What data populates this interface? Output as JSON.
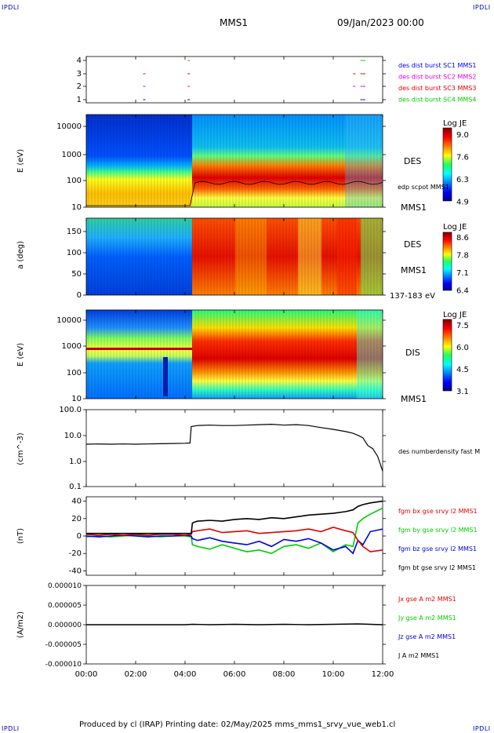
{
  "corner_labels": [
    "IPDLI",
    "IPDLI",
    "IPDLI",
    "IPDLI"
  ],
  "header": {
    "spacecraft": "MMS1",
    "datetime": "09/Jan/2023 00:00"
  },
  "footer": {
    "text": "Produced by cl (IRAP)   Printing date: 02/May/2025   mms_mms1_srvy_vue_web1.cl"
  },
  "colors": {
    "red": "#e00000",
    "green": "#00cc00",
    "blue": "#0000e0",
    "magenta": "#e000e0",
    "black": "#000000"
  },
  "chart_data": [
    {
      "type": "scatter",
      "panel": "burst-availability",
      "yticks": [
        "4",
        "3",
        "2",
        "1"
      ],
      "legend": [
        {
          "text": "des dist burst SC1 MMS1",
          "color": "#0000e0"
        },
        {
          "text": "des dist burst SC2 MMS2",
          "color": "#e000e0"
        },
        {
          "text": "des dist burst SC3 MMS3",
          "color": "#e00000"
        },
        {
          "text": "des dist burst SC4 MMS4",
          "color": "#00cc00"
        }
      ],
      "series": [
        {
          "y": 4,
          "color": "#00cc00",
          "x": [
            4.1,
            11.1,
            11.2
          ]
        },
        {
          "y": 3,
          "color": "#e00000",
          "x": [
            2.3,
            4.1,
            10.8,
            11.1,
            11.2
          ]
        },
        {
          "y": 2,
          "color": "#e000e0",
          "x": [
            2.3,
            4.1,
            10.8,
            11.1,
            11.2
          ]
        },
        {
          "y": 1,
          "color": "#0000e0",
          "x": [
            2.3,
            4.1,
            11.1,
            11.2
          ]
        }
      ]
    },
    {
      "type": "heatmap",
      "panel": "des-energy",
      "ylabel": "E (eV)",
      "yticks": [
        "10000",
        "1000",
        "100",
        "10"
      ],
      "label": "DES",
      "label2": "MMS1",
      "overlay": "edp scpot MMS1",
      "colorbar": {
        "title": "Log JE",
        "ticks": [
          "9.0",
          "7.6",
          "6.3",
          "4.9"
        ]
      }
    },
    {
      "type": "heatmap",
      "panel": "des-pitch-angle",
      "ylabel": "a (deg)",
      "yticks": [
        "150",
        "100",
        "50",
        "0"
      ],
      "label": "DES",
      "label2": "MMS1",
      "energy_range": "137-183 eV",
      "colorbar": {
        "title": "Log JE",
        "ticks": [
          "8.6",
          "7.8",
          "7.1",
          "6.4"
        ]
      }
    },
    {
      "type": "heatmap",
      "panel": "dis-energy",
      "ylabel": "E (eV)",
      "yticks": [
        "10000",
        "1000",
        "100",
        "10"
      ],
      "label": "DIS",
      "label2": "MMS1",
      "colorbar": {
        "title": "Log JE",
        "ticks": [
          "7.5",
          "6.0",
          "4.5",
          "3.1"
        ]
      }
    },
    {
      "type": "line",
      "panel": "density",
      "ylabel": "(cm^-3)",
      "yticks": [
        "100.0",
        "10.0",
        "1.0",
        "0.1"
      ],
      "ylim": [
        0.1,
        100
      ],
      "yscale": "log",
      "legend": [
        {
          "text": "des numberdensity fast M",
          "color": "#000000"
        }
      ],
      "series": [
        {
          "name": "des numberdensity fast M",
          "color": "#000000",
          "x": [
            0,
            0.5,
            1,
            1.5,
            2,
            2.5,
            3,
            3.5,
            4,
            4.2,
            4.25,
            4.5,
            5,
            5.5,
            6,
            6.5,
            7,
            7.5,
            8,
            8.5,
            9,
            9.5,
            10,
            10.5,
            10.8,
            11,
            11.2,
            11.4,
            11.6,
            11.8,
            12
          ],
          "y": [
            4.5,
            4.6,
            4.5,
            4.6,
            4.5,
            4.6,
            4.7,
            4.8,
            4.9,
            5.0,
            22,
            24,
            25,
            24,
            24,
            25,
            26,
            27,
            25,
            26,
            24,
            20,
            17,
            14,
            12,
            10,
            8,
            4,
            3,
            1.5,
            0.4
          ]
        }
      ]
    },
    {
      "type": "line",
      "panel": "magnetic-field",
      "ylabel": "(nT)",
      "yticks": [
        "40",
        "20",
        "0",
        "-20",
        "-40"
      ],
      "ylim": [
        -45,
        45
      ],
      "legend": [
        {
          "text": "fgm bx gse srvy l2 MMS1",
          "color": "#e00000"
        },
        {
          "text": "fgm by gse srvy l2 MMS1",
          "color": "#00cc00"
        },
        {
          "text": "fgm bz gse srvy l2 MMS1",
          "color": "#0000e0"
        },
        {
          "text": "fgm bt gse srvy l2 MMS1",
          "color": "#000000"
        }
      ],
      "series": [
        {
          "name": "fgm by gse srvy l2 MMS1",
          "color": "#00cc00",
          "x": [
            0,
            0.5,
            1,
            1.5,
            2,
            2.5,
            3,
            3.5,
            4,
            4.25,
            4.3,
            4.5,
            5,
            5.5,
            6,
            6.5,
            7,
            7.5,
            8,
            8.5,
            9,
            9.5,
            10,
            10.5,
            10.8,
            11,
            11.2,
            11.5,
            12
          ],
          "y": [
            -1,
            0,
            -1,
            0,
            1,
            0,
            -1,
            0,
            0,
            -1,
            -10,
            -12,
            -15,
            -10,
            -14,
            -18,
            -16,
            -20,
            -12,
            -10,
            -14,
            -8,
            -18,
            -10,
            -12,
            15,
            20,
            25,
            32
          ]
        },
        {
          "name": "fgm bz gse srvy l2 MMS1",
          "color": "#0000e0",
          "x": [
            0,
            0.5,
            1,
            1.5,
            2,
            2.5,
            3,
            3.5,
            4,
            4.25,
            4.3,
            4.5,
            5,
            5.5,
            6,
            6.5,
            7,
            7.5,
            8,
            8.5,
            9,
            9.5,
            10,
            10.5,
            10.8,
            11,
            11.2,
            11.5,
            12
          ],
          "y": [
            0,
            -1,
            0,
            1,
            0,
            -1,
            0,
            0,
            1,
            0,
            -3,
            -5,
            -2,
            -6,
            -8,
            -10,
            -6,
            -12,
            -4,
            -6,
            -3,
            -8,
            -16,
            -12,
            -20,
            -5,
            -10,
            5,
            8
          ]
        },
        {
          "name": "fgm bx gse srvy l2 MMS1",
          "color": "#e00000",
          "x": [
            0,
            0.5,
            1,
            1.5,
            2,
            2.5,
            3,
            3.5,
            4,
            4.25,
            4.3,
            4.5,
            5,
            5.5,
            6,
            6.5,
            7,
            7.5,
            8,
            8.5,
            9,
            9.5,
            10,
            10.5,
            10.8,
            11,
            11.2,
            11.5,
            12
          ],
          "y": [
            2,
            1,
            2,
            1,
            2,
            1,
            2,
            2,
            1,
            2,
            5,
            6,
            8,
            4,
            5,
            6,
            3,
            4,
            5,
            6,
            8,
            5,
            10,
            6,
            4,
            -5,
            -12,
            -18,
            -16
          ]
        },
        {
          "name": "fgm bt gse srvy l2 MMS1",
          "color": "#000000",
          "x": [
            0,
            0.5,
            1,
            1.5,
            2,
            2.5,
            3,
            3.5,
            4,
            4.25,
            4.3,
            4.5,
            5,
            5.5,
            6,
            6.5,
            7,
            7.5,
            8,
            8.5,
            9,
            9.5,
            10,
            10.5,
            10.8,
            11,
            11.2,
            11.5,
            12
          ],
          "y": [
            3,
            3,
            3,
            3,
            3,
            3,
            3,
            3,
            3,
            3,
            15,
            17,
            18,
            17,
            19,
            20,
            19,
            21,
            20,
            22,
            24,
            25,
            26,
            28,
            30,
            34,
            36,
            38,
            40
          ]
        }
      ]
    },
    {
      "type": "line",
      "panel": "current-density",
      "ylabel": "(A/m2)",
      "yticks": [
        "0.000010",
        "0.000005",
        "0.000000",
        "-0.000005",
        "-0.000010"
      ],
      "ylim": [
        -1e-05,
        1e-05
      ],
      "legend": [
        {
          "text": "Jx gse A m2 MMS1",
          "color": "#e00000"
        },
        {
          "text": "Jy gse A m2 MMS1",
          "color": "#00cc00"
        },
        {
          "text": "Jz gse A m2 MMS1",
          "color": "#0000e0"
        },
        {
          "text": "J A m2 MMS1",
          "color": "#000000"
        }
      ],
      "series": [
        {
          "name": "J A m2 MMS1",
          "color": "#000000",
          "x": [
            0,
            1,
            2,
            3,
            4,
            4.3,
            5,
            6,
            7,
            8,
            9,
            10,
            11,
            12
          ],
          "y": [
            0,
            0,
            0,
            0,
            0,
            1e-07,
            0,
            1e-07,
            0,
            1e-07,
            0,
            1e-07,
            2e-07,
            0
          ]
        }
      ],
      "xticks": [
        "00:00",
        "02:00",
        "04:00",
        "06:00",
        "08:00",
        "10:00",
        "12:00"
      ],
      "xlim": [
        0,
        12
      ]
    }
  ]
}
